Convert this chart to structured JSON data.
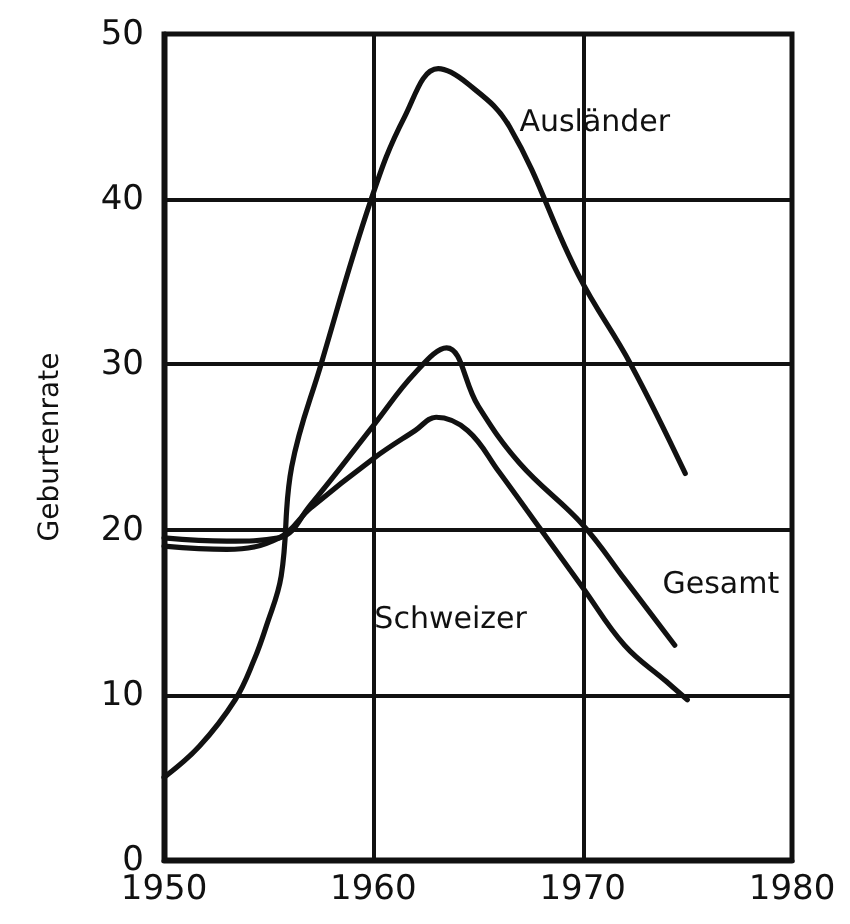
{
  "chart_data": {
    "type": "line",
    "ylabel": "Geburtenrate",
    "xlim": [
      1950,
      1980
    ],
    "xticks": [
      1950,
      1960,
      1970,
      1980
    ],
    "ylim": [
      0,
      50
    ],
    "yticks": [
      0,
      10,
      20,
      30,
      40,
      50
    ],
    "grid": true,
    "legend": false,
    "marker": "none",
    "line_style": "solid",
    "series": [
      {
        "name": "Ausländer",
        "color": "#111111",
        "x": [
          1950,
          1951.7,
          1953.4,
          1954.3,
          1954.9,
          1955.6,
          1956.1,
          1957.5,
          1959.9,
          1961.5,
          1963.1,
          1964.5,
          1966.5,
          1969.8,
          1972.3,
          1974.9
        ],
        "values": [
          5,
          6.9,
          9.7,
          12.1,
          14.2,
          17.2,
          23.8,
          30,
          40,
          45,
          47.9,
          47,
          44.4,
          35.4,
          30,
          23.4
        ]
      },
      {
        "name": "Gesamt",
        "color": "#111111",
        "x": [
          1950,
          1953,
          1955.5,
          1957,
          1960,
          1962,
          1963.5,
          1965,
          1967,
          1970,
          1972,
          1974.4
        ],
        "values": [
          19.5,
          19.3,
          19.5,
          21.5,
          26.3,
          29.5,
          31,
          27.5,
          24,
          20.3,
          17,
          13
        ]
      },
      {
        "name": "Schweizer",
        "color": "#111111",
        "x": [
          1950,
          1953,
          1955.5,
          1957,
          1960,
          1962,
          1963,
          1964.5,
          1966,
          1968,
          1970,
          1972,
          1974,
          1975
        ],
        "values": [
          19,
          18.8,
          19.5,
          21.3,
          24.3,
          26,
          26.8,
          26,
          23.5,
          20,
          16.5,
          13,
          10.8,
          9.7
        ]
      }
    ]
  }
}
